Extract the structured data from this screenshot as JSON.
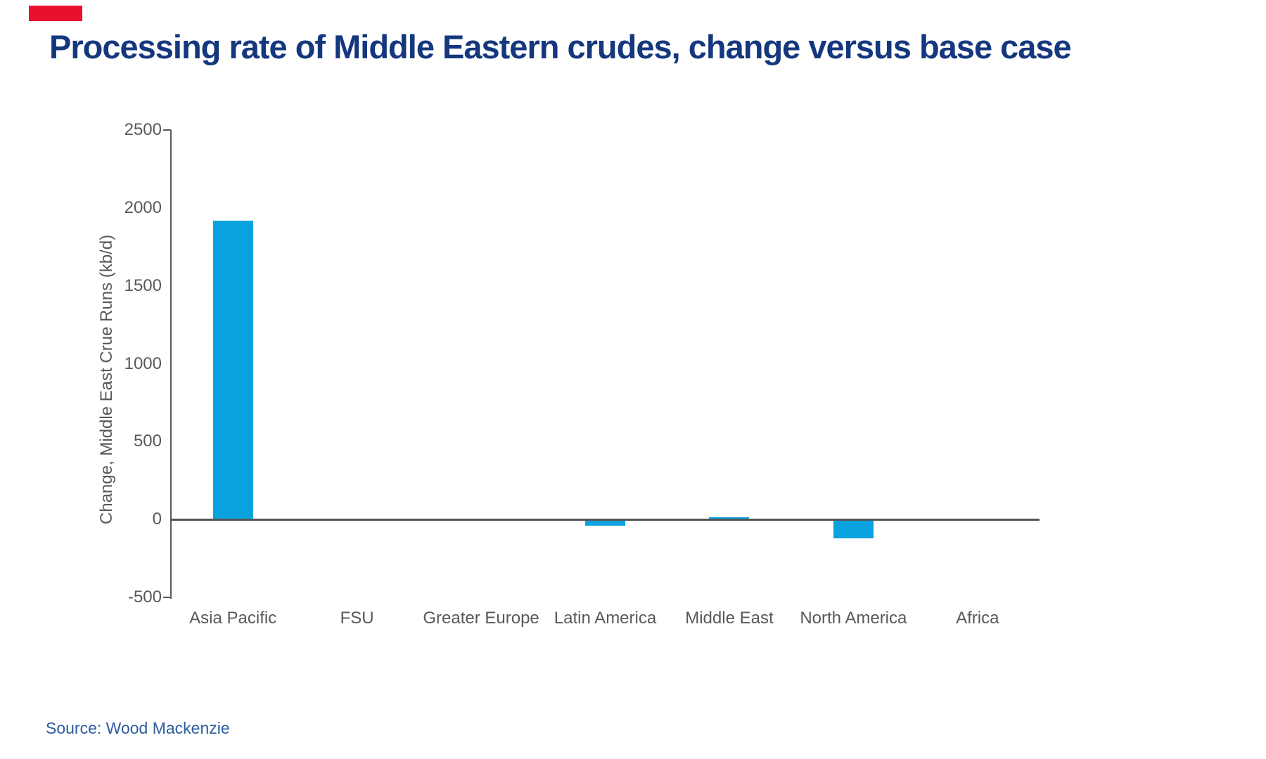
{
  "brand": {
    "logo_mark_color": "#E8112D"
  },
  "header": {
    "title": "Processing rate of Middle Eastern crudes, change versus base case",
    "title_color": "#14377E"
  },
  "chart_data": {
    "type": "bar",
    "title": "Processing rate of Middle Eastern crudes, change versus base case",
    "categories": [
      "Asia Pacific",
      "FSU",
      "Greater Europe",
      "Latin America",
      "Middle East",
      "North America",
      "Africa"
    ],
    "values": [
      1920,
      0,
      0,
      -40,
      15,
      -120,
      0
    ],
    "xlabel": "",
    "ylabel": "Change, Middle East Crue Runs (kb/d)",
    "ylim": [
      -500,
      2500
    ],
    "ytick_step": 500,
    "yticks": [
      2500,
      2000,
      1500,
      1000,
      500,
      0,
      -500
    ],
    "bar_color": "#0aa2de",
    "axis_color": "#595959",
    "label_color": "#595959",
    "grid": false,
    "legend_position": "none",
    "units": "kb/d"
  },
  "footer": {
    "source": "Source: Wood Mackenzie",
    "source_color": "#2E5C9E"
  }
}
